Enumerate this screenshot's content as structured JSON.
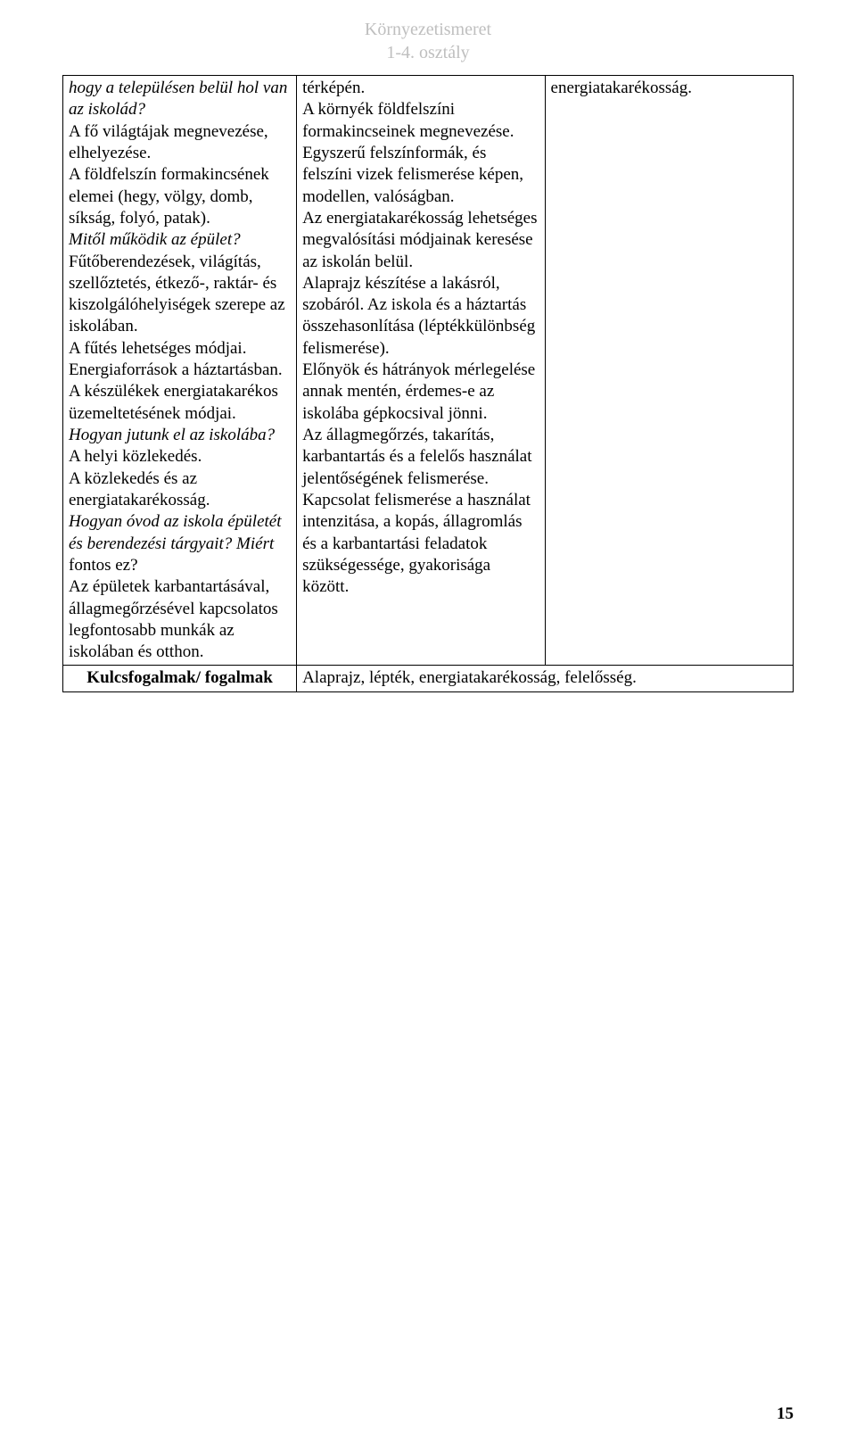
{
  "header": {
    "line1": "Környezetismeret",
    "line2": "1-4. osztály"
  },
  "row1": {
    "col1": {
      "l1": "hogy a településen belül hol van az iskolád?",
      "l2": "A fő világtájak megnevezése, elhelyezése.",
      "l3": "A földfelszín formakincsének elemei (hegy, völgy, domb, síkság, folyó, patak).",
      "l4": "Mitől működik az épület?",
      "l5": "Fűtőberendezések, világítás, szellőztetés, étkező-, raktár- és kiszolgálóhelyiségek szerepe az iskolában.",
      "l6": "A fűtés lehetséges módjai.",
      "l7": "Energiaforrások a háztartásban.",
      "l8": "A készülékek energiatakarékos üzemeltetésének módjai.",
      "l9": "Hogyan jutunk el az iskolába?",
      "l10": "A helyi közlekedés.",
      "l11": "A közlekedés és az energiatakarékosság.",
      "l12a": "Hogyan óvod az iskola épületét és berendezési tárgyait? Miért",
      "l12b": " fontos ez?",
      "l13": "Az épületek karbantartásával, állagmegőrzésével kapcsolatos legfontosabb munkák az iskolában és otthon."
    },
    "col2": {
      "l1": "térképén.",
      "l2": "A környék földfelszíni formakincseinek megnevezése. Egyszerű felszínformák, és felszíni vizek felismerése képen, modellen, valóságban.",
      "l3": "Az energiatakarékosság lehetséges megvalósítási módjainak keresése az iskolán belül.",
      "l4": "Alaprajz készítése a lakásról, szobáról. Az iskola és a háztartás összehasonlítása (léptékkülönbség felismerése).",
      "l5": "Előnyök és hátrányok mérlegelése annak mentén, érdemes-e az iskolába gépkocsival jönni.",
      "l6": "Az állagmegőrzés, takarítás, karbantartás és a felelős használat jelentőségének felismerése. Kapcsolat felismerése a használat intenzitása, a kopás, állagromlás és a karbantartási feladatok szükségessége, gyakorisága között."
    },
    "col3": {
      "l1": "energiatakarékosság."
    }
  },
  "row2": {
    "label": "Kulcsfogalmak/ fogalmak",
    "value": "Alaprajz, lépték, energiatakarékosság, felelősség."
  },
  "pageNumber": "15",
  "colors": {
    "headerText": "#bfbfbf",
    "text": "#000000",
    "border": "#000000",
    "background": "#ffffff"
  },
  "typography": {
    "fontFamily": "Times New Roman",
    "bodyFontSize": 19,
    "headerFontSize": 20
  }
}
